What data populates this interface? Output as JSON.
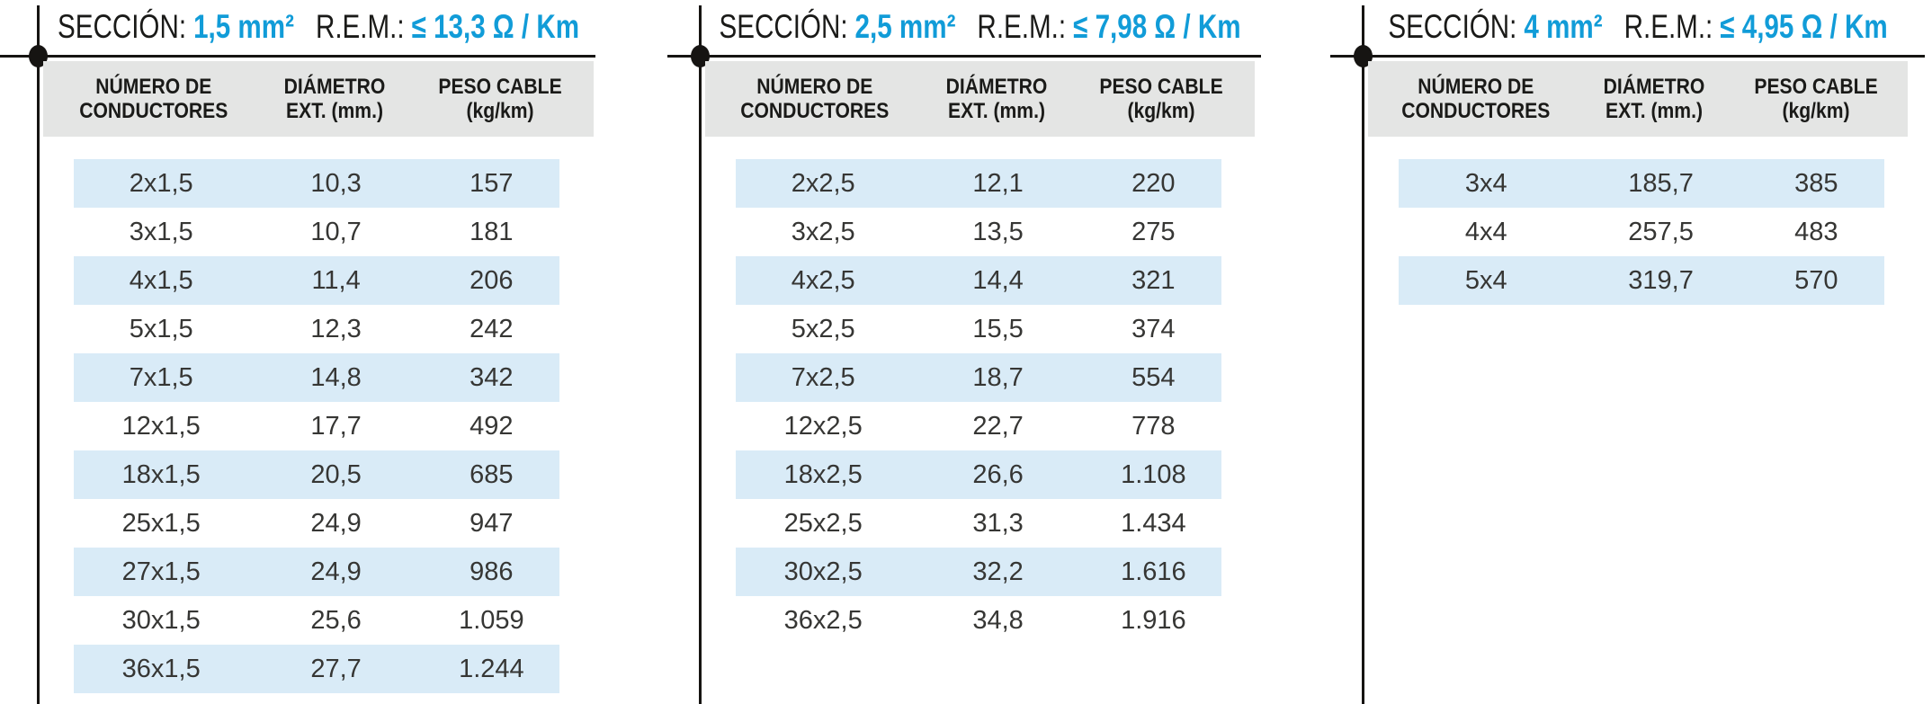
{
  "colors": {
    "accent_blue": "#119CD8",
    "stripe_blue": "#D9EBF7",
    "header_gray": "#E4E5E4",
    "rule_black": "#161412"
  },
  "tables": [
    {
      "title": {
        "section_label": "SECCIÓN:",
        "section_value": "1,5 mm²",
        "rem_label": "R.E.M.:",
        "rem_value": "≤ 13,3 Ω / Km"
      },
      "columns": [
        {
          "line1": "NÚMERO DE",
          "line2": "CONDUCTORES"
        },
        {
          "line1": "DIÁMETRO",
          "line2": "EXT. (mm.)"
        },
        {
          "line1": "PESO CABLE",
          "line2": "(kg/km)"
        }
      ],
      "rows": [
        [
          "2x1,5",
          "10,3",
          "157"
        ],
        [
          "3x1,5",
          "10,7",
          "181"
        ],
        [
          "4x1,5",
          "11,4",
          "206"
        ],
        [
          "5x1,5",
          "12,3",
          "242"
        ],
        [
          "7x1,5",
          "14,8",
          "342"
        ],
        [
          "12x1,5",
          "17,7",
          "492"
        ],
        [
          "18x1,5",
          "20,5",
          "685"
        ],
        [
          "25x1,5",
          "24,9",
          "947"
        ],
        [
          "27x1,5",
          "24,9",
          "986"
        ],
        [
          "30x1,5",
          "25,6",
          "1.059"
        ],
        [
          "36x1,5",
          "27,7",
          "1.244"
        ]
      ]
    },
    {
      "title": {
        "section_label": "SECCIÓN:",
        "section_value": "2,5 mm²",
        "rem_label": "R.E.M.:",
        "rem_value": "≤ 7,98 Ω / Km"
      },
      "columns": [
        {
          "line1": "NÚMERO DE",
          "line2": "CONDUCTORES"
        },
        {
          "line1": "DIÁMETRO",
          "line2": "EXT. (mm.)"
        },
        {
          "line1": "PESO CABLE",
          "line2": "(kg/km)"
        }
      ],
      "rows": [
        [
          "2x2,5",
          "12,1",
          "220"
        ],
        [
          "3x2,5",
          "13,5",
          "275"
        ],
        [
          "4x2,5",
          "14,4",
          "321"
        ],
        [
          "5x2,5",
          "15,5",
          "374"
        ],
        [
          "7x2,5",
          "18,7",
          "554"
        ],
        [
          "12x2,5",
          "22,7",
          "778"
        ],
        [
          "18x2,5",
          "26,6",
          "1.108"
        ],
        [
          "25x2,5",
          "31,3",
          "1.434"
        ],
        [
          "30x2,5",
          "32,2",
          "1.616"
        ],
        [
          "36x2,5",
          "34,8",
          "1.916"
        ]
      ]
    },
    {
      "title": {
        "section_label": "SECCIÓN:",
        "section_value": "4 mm²",
        "rem_label": "R.E.M.:",
        "rem_value": "≤ 4,95 Ω / Km"
      },
      "columns": [
        {
          "line1": "NÚMERO DE",
          "line2": "CONDUCTORES"
        },
        {
          "line1": "DIÁMETRO",
          "line2": "EXT. (mm.)"
        },
        {
          "line1": "PESO CABLE",
          "line2": "(kg/km)"
        }
      ],
      "rows": [
        [
          "3x4",
          "185,7",
          "385"
        ],
        [
          "4x4",
          "257,5",
          "483"
        ],
        [
          "5x4",
          "319,7",
          "570"
        ]
      ]
    }
  ]
}
